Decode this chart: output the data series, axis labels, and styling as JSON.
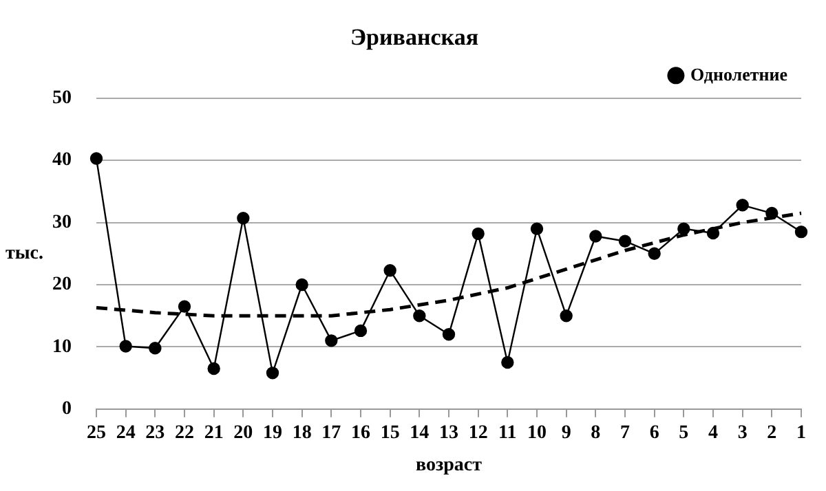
{
  "chart_data": {
    "type": "line",
    "title": "Эриванская",
    "xlabel": "возраст",
    "ylabel": "тыс.",
    "categories": [
      "25",
      "24",
      "23",
      "22",
      "21",
      "20",
      "19",
      "18",
      "17",
      "16",
      "15",
      "14",
      "13",
      "12",
      "11",
      "10",
      "9",
      "8",
      "7",
      "6",
      "5",
      "4",
      "3",
      "2",
      "1"
    ],
    "series": [
      {
        "name": "Однолетние",
        "color": "#000000",
        "marker": "circle",
        "line_style": "solid",
        "values": [
          40.3,
          10.1,
          9.8,
          16.5,
          6.5,
          30.7,
          5.8,
          20,
          11,
          12.6,
          22.3,
          15,
          12,
          28.2,
          7.5,
          29,
          15,
          27.8,
          27,
          25,
          29,
          28.3,
          32.8,
          31.5,
          28.5
        ]
      },
      {
        "type": "line",
        "color": "#000000",
        "marker": "none",
        "line_style": "dashed",
        "x": [
          "25",
          "23",
          "21",
          "19",
          "17",
          "15",
          "13",
          "11",
          "9",
          "7",
          "5",
          "3",
          "1"
        ],
        "values": [
          16.3,
          15.5,
          15,
          15,
          15,
          16,
          17.5,
          19.5,
          22.5,
          25.5,
          28,
          30,
          31.5
        ]
      }
    ],
    "ylim": [
      0,
      50
    ],
    "yticks": [
      0,
      10,
      20,
      30,
      40,
      50
    ],
    "grid": "y",
    "legend": "top right"
  }
}
